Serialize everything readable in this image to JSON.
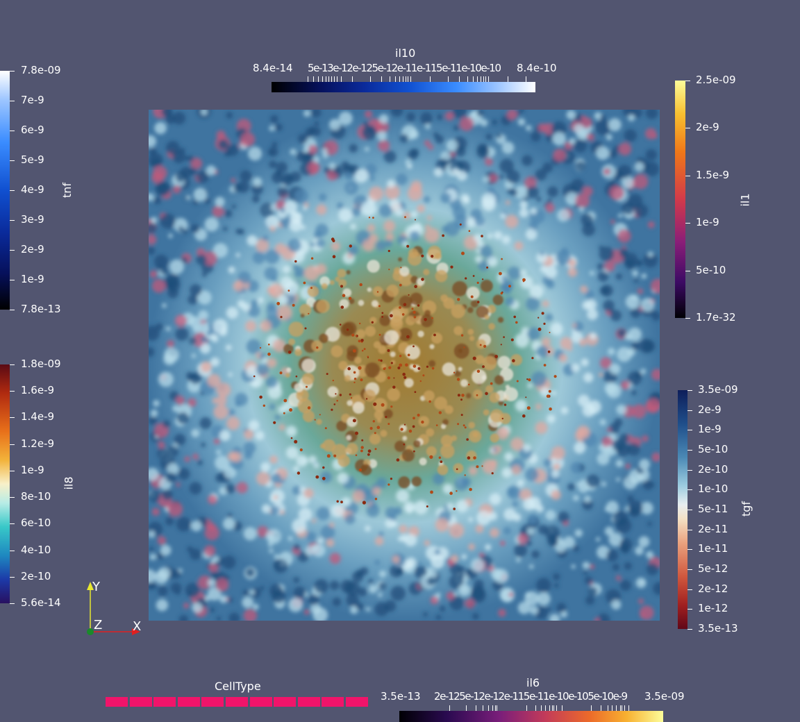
{
  "view": {
    "field_description_colors": [
      "#5b8fb0",
      "#a9d4e8",
      "#d98b8b",
      "#9c7a2e",
      "#1f4e79"
    ]
  },
  "colorbars": {
    "tnf": {
      "title": "tnf",
      "labels": [
        "7.8e-09",
        "7e-9",
        "6e-9",
        "5e-9",
        "4e-9",
        "3e-9",
        "2e-9",
        "1e-9",
        "7.8e-13"
      ]
    },
    "il8": {
      "title": "il8",
      "labels": [
        "1.8e-09",
        "1.6e-9",
        "1.4e-9",
        "1.2e-9",
        "1e-9",
        "8e-10",
        "6e-10",
        "4e-10",
        "2e-10",
        "5.6e-14"
      ]
    },
    "il10": {
      "title": "il10",
      "min_label": "8.4e-14",
      "max_label": "8.4e-10",
      "mid_labels": "5e-13e-12e-125e-12e-11e-115e-11e-10e-10"
    },
    "il1": {
      "title": "il1",
      "labels": [
        "2.5e-09",
        "2e-9",
        "1.5e-9",
        "1e-9",
        "5e-10",
        "1.7e-32"
      ]
    },
    "tgf": {
      "title": "tgf",
      "labels": [
        "3.5e-09",
        "2e-9",
        "1e-9",
        "5e-10",
        "2e-10",
        "1e-10",
        "5e-11",
        "2e-11",
        "1e-11",
        "5e-12",
        "2e-12",
        "1e-12",
        "3.5e-13"
      ]
    },
    "il6": {
      "title": "il6",
      "min_label": "3.5e-13",
      "max_label": "3.5e-09",
      "mid_labels": "2e-125e-12e-12e-115e-11e-10e-105e-10e-9"
    },
    "celltype": {
      "title": "CellType",
      "swatch_color": "#f0146a",
      "count": 11
    }
  },
  "axes": {
    "y": "Y",
    "z": "Z",
    "x": "X"
  }
}
